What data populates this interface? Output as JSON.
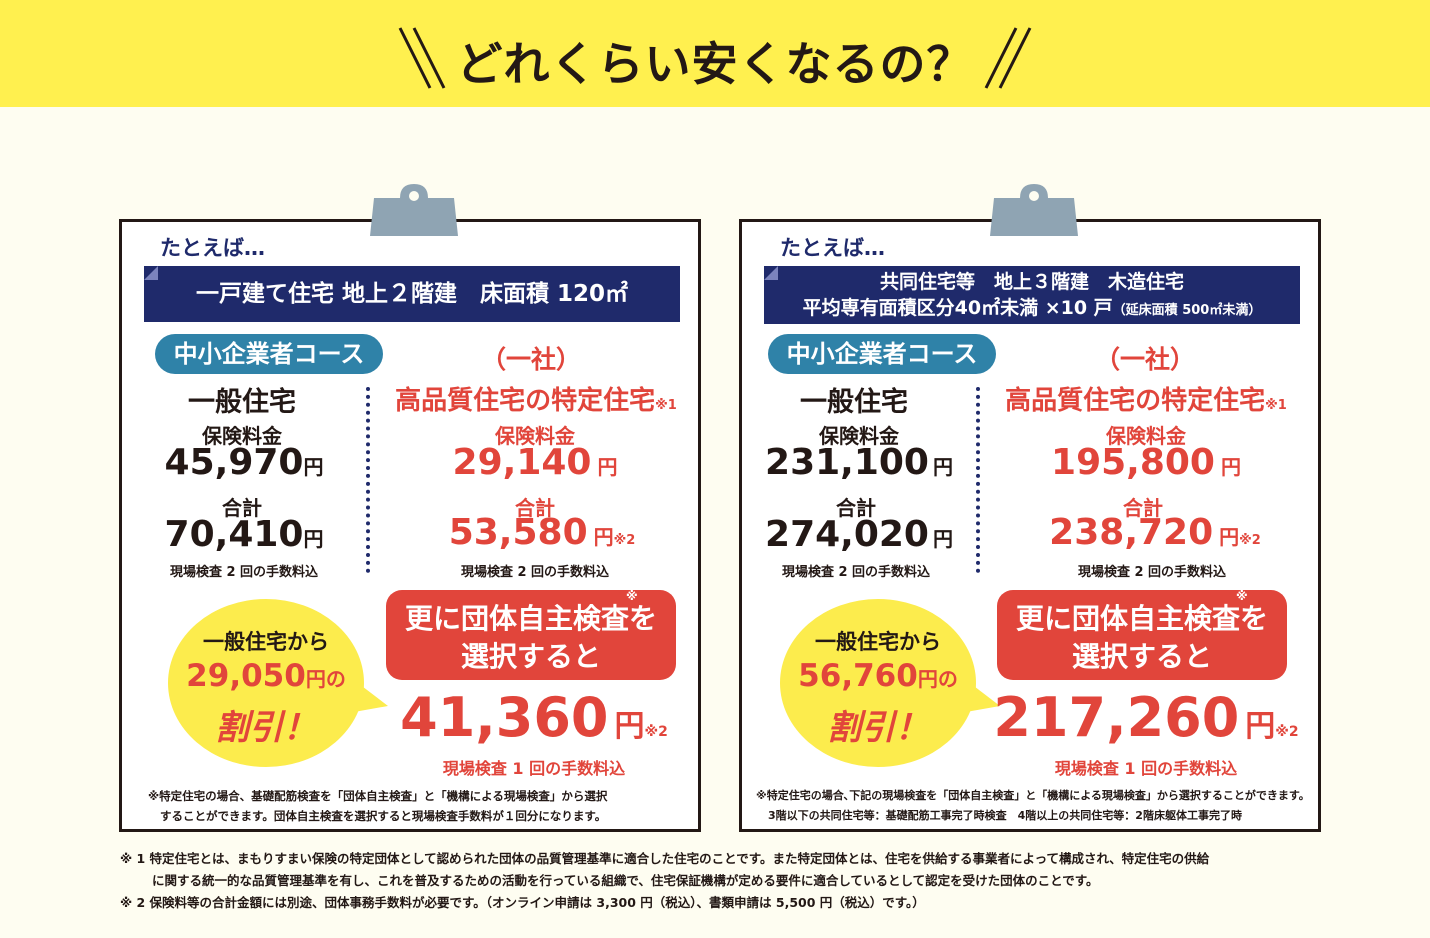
{
  "banner": {
    "title": "どれくらい安くなるの？"
  },
  "cards": [
    {
      "tatoeba": "たとえば…",
      "header_line1": "一戸建て住宅 地上２階建　床面積 120㎡",
      "header_line2": "",
      "course": "中小企業者コース",
      "general": {
        "kind": "一般住宅",
        "premium_label": "保険料金",
        "premium": "45,970",
        "yen": "円",
        "total_label": "合計",
        "total": "70,410",
        "note": "現場検査 2 回の手数料込"
      },
      "special": {
        "org": "（一社）",
        "kind": "高品質住宅の特定住宅",
        "kind_mark": "※1",
        "premium_label": "保険料金",
        "premium": "29,140",
        "yen": "円",
        "total_label": "合計",
        "total": "53,580",
        "total_mark": "※2",
        "note": "現場検査 2 回の手数料込"
      },
      "bubble": {
        "line1": "一般住宅から",
        "amount": "29,050",
        "unit": "円の",
        "line3": "割引！"
      },
      "option": {
        "mark": "※",
        "line1": "更に団体自主検査を",
        "line2": "選択すると",
        "amount": "41,360",
        "yen": "円",
        "amount_mark": "※2",
        "note": "現場検査 1 回の手数料込"
      },
      "card_notes": [
        "※特定住宅の場合、基礎配筋検査を「団体自主検査」と「機構による現場検査」から選択",
        "することができます。団体自主検査を選択すると現場検査手数料が１回分になります。"
      ]
    },
    {
      "tatoeba": "たとえば…",
      "header_line1": "共同住宅等　地上３階建　木造住宅",
      "header_line2": "平均専有面積区分40㎡未満 ×10 戸",
      "header_line2_small": "（延床面積 500㎡未満）",
      "course": "中小企業者コース",
      "general": {
        "kind": "一般住宅",
        "premium_label": "保険料金",
        "premium": "231,100",
        "yen": "円",
        "total_label": "合計",
        "total": "274,020",
        "note": "現場検査 2 回の手数料込"
      },
      "special": {
        "org": "（一社）",
        "kind": "高品質住宅の特定住宅",
        "kind_mark": "※1",
        "premium_label": "保険料金",
        "premium": "195,800",
        "yen": "円",
        "total_label": "合計",
        "total": "238,720",
        "total_mark": "※2",
        "note": "現場検査 2 回の手数料込"
      },
      "bubble": {
        "line1": "一般住宅から",
        "amount": "56,760",
        "unit": "円の",
        "line3": "割引！"
      },
      "option": {
        "mark": "※",
        "line1": "更に団体自主検査を",
        "line2": "選択すると",
        "amount": "217,260",
        "yen": "円",
        "amount_mark": "※2",
        "note": "現場検査 1 回の手数料込"
      },
      "card_notes": [
        "※特定住宅の場合､下記の現場検査を「団体自主検査」と「機構による現場検査」から選択することができます。",
        "3階以下の共同住宅等：基礎配筋工事完了時検査　4階以上の共同住宅等：2階床躯体工事完了時"
      ]
    }
  ],
  "footnotes": [
    "※ 1  特定住宅とは、まもりすまい保険の特定団体として認められた団体の品質管理基準に適合した住宅のことです。また特定団体とは、住宅を供給する事業者によって構成され、特定住宅の供給",
    "に関する統一的な品質管理基準を有し、これを普及するための活動を行っている組織で、住宅保証機構が定める要件に適合しているとして認定を受けた団体のことです。",
    "※ 2  保険料等の合計金額には別途、団体事務手数料が必要です。（オンライン申請は 3,300 円（税込）、書類申請は 5,500 円（税込）です。）"
  ],
  "colors": {
    "banner": "#fff04f",
    "navy": "#1f2a6b",
    "course": "#2f82a8",
    "red": "#e1453b",
    "bubble": "#fcec4d",
    "background": "#fefdf1"
  }
}
